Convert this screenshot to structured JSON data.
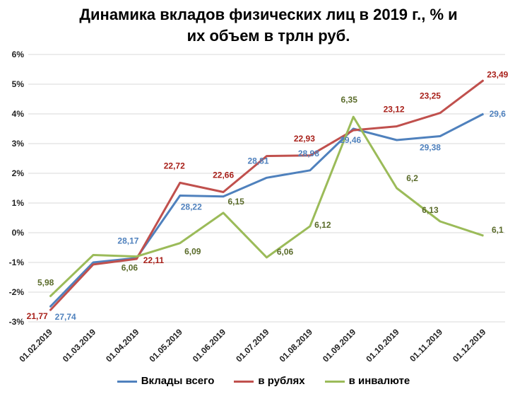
{
  "chart_data": {
    "type": "line",
    "title": [
      "Динамика вкладов физических лиц в 2019 г., % и",
      "их объем в трлн руб."
    ],
    "x": [
      "01.02.2019",
      "01.03.2019",
      "01.04.2019",
      "01.05.2019",
      "01.06.2019",
      "01.07.2019",
      "01.08.2019",
      "01.09.2019",
      "01.10.2019",
      "01.11.2019",
      "01.12.2019"
    ],
    "yticks": [
      "-3%",
      "-2%",
      "-1%",
      "0%",
      "1%",
      "2%",
      "3%",
      "4%",
      "5%",
      "6%"
    ],
    "ylim": [
      -3,
      6
    ],
    "grid": true,
    "legend_position": "bottom",
    "series": [
      {
        "name": "Вклады всего",
        "color": "#4f81bd",
        "values": [
          -2.5,
          -1.0,
          -0.85,
          1.25,
          1.22,
          1.85,
          2.1,
          3.5,
          3.12,
          3.25,
          4.0
        ],
        "labels": [
          "27,74",
          "",
          "28,17",
          "28,22",
          "",
          "28,81",
          "28,98",
          "29,46",
          "",
          "29,38",
          "29,6"
        ]
      },
      {
        "name": "в рублях",
        "color": "#c0504d",
        "values": [
          -2.62,
          -1.07,
          -0.88,
          1.68,
          1.37,
          2.58,
          2.6,
          3.45,
          3.58,
          4.03,
          5.13
        ],
        "labels": [
          "21,77",
          "",
          "22,11",
          "22,72",
          "22,66",
          "",
          "22,93",
          "",
          "23,12",
          "23,25",
          "23,49"
        ]
      },
      {
        "name": "в инвалюте",
        "color": "#9bbb59",
        "values": [
          -2.15,
          -0.75,
          -0.8,
          -0.35,
          0.67,
          -0.83,
          0.22,
          3.9,
          1.5,
          0.38,
          -0.1
        ],
        "labels": [
          "5,98",
          "",
          "6,06",
          "6,09",
          "6,15",
          "6,06",
          "6,12",
          "6,35",
          "6,2",
          "6,13",
          "6,1"
        ]
      }
    ]
  }
}
